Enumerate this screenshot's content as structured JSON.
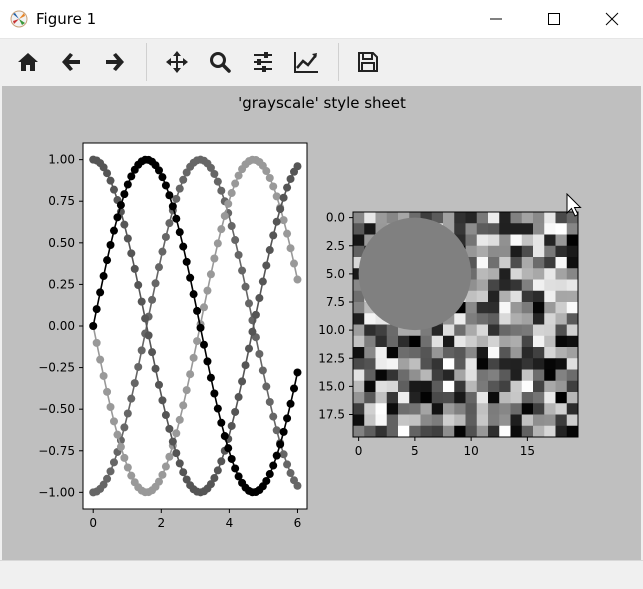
{
  "window": {
    "title": "Figure 1"
  },
  "toolbar": {
    "buttons": [
      {
        "name": "home",
        "icon": "home-icon"
      },
      {
        "name": "back",
        "icon": "arrow-left-icon"
      },
      {
        "name": "forward",
        "icon": "arrow-right-icon"
      },
      {
        "name": "pan",
        "icon": "move-icon"
      },
      {
        "name": "zoom",
        "icon": "magnifier-icon"
      },
      {
        "name": "configure-subplots",
        "icon": "sliders-icon"
      },
      {
        "name": "edit-axis",
        "icon": "line-chart-icon"
      },
      {
        "name": "save",
        "icon": "floppy-disk-icon"
      }
    ]
  },
  "figure": {
    "suptitle": "'grayscale' style sheet",
    "background": "#bfbfbf"
  },
  "chart_data": [
    {
      "type": "line",
      "title": "",
      "xlabel": "",
      "ylabel": "",
      "xlim": [
        -0.3,
        6.28
      ],
      "ylim": [
        -1.1,
        1.1
      ],
      "x_ticks": [
        0,
        2,
        4,
        6
      ],
      "x_tick_labels": [
        "0",
        "2",
        "4",
        "6"
      ],
      "y_ticks": [
        -1.0,
        -0.75,
        -0.5,
        -0.25,
        0.0,
        0.25,
        0.5,
        0.75,
        1.0
      ],
      "y_tick_labels": [
        "−1.00",
        "−0.75",
        "−0.50",
        "−0.25",
        "0.00",
        "0.25",
        "0.50",
        "0.75",
        "1.00"
      ],
      "grid": false,
      "x": {
        "start": 0,
        "stop": 6.0,
        "count": 60
      },
      "series": [
        {
          "function": "sin(x)",
          "phase": 0,
          "color": "#000000"
        },
        {
          "function": "sin(x + 1.5708)",
          "phase": 1.5708,
          "color": "#555555"
        },
        {
          "function": "sin(x + 3.1416)",
          "phase": 3.1416,
          "color": "#999999"
        },
        {
          "function": "sin(x + 4.7124)",
          "phase": 4.7124,
          "color": "#666666"
        }
      ],
      "marker": "o"
    },
    {
      "type": "heatmap",
      "title": "",
      "xlim": [
        -0.5,
        19.5
      ],
      "ylim": [
        19.5,
        -0.5
      ],
      "x_ticks": [
        0,
        5,
        10,
        15
      ],
      "x_tick_labels": [
        "0",
        "5",
        "10",
        "15"
      ],
      "y_ticks": [
        0,
        2.5,
        5,
        7.5,
        10,
        12.5,
        15,
        17.5
      ],
      "y_tick_labels": [
        "0.0",
        "2.5",
        "5.0",
        "7.5",
        "10.0",
        "12.5",
        "15.0",
        "17.5"
      ],
      "rows": 20,
      "cols": 20,
      "colormap": "gray",
      "value_range": [
        0,
        1
      ],
      "values": "uniform random noise",
      "circle": {
        "center": [
          5,
          5
        ],
        "radius": 5,
        "color": "#808080"
      }
    }
  ]
}
